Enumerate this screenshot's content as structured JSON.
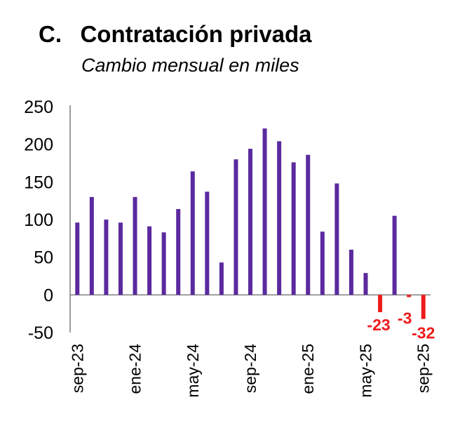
{
  "heading": {
    "letter": "C.",
    "title": "Contratación privada",
    "subtitle": "Cambio mensual en miles"
  },
  "colors": {
    "bar_positive": "#5b2a9e",
    "bar_negative": "#ee1c1c",
    "axis": "#7f7f7f"
  },
  "chart_data": {
    "type": "bar",
    "categories": [
      "sep-23",
      "oct-23",
      "nov-23",
      "dic-23",
      "ene-24",
      "feb-24",
      "mar-24",
      "abr-24",
      "may-24",
      "jun-24",
      "jul-24",
      "ago-24",
      "sep-24",
      "oct-24",
      "nov-24",
      "dic-24",
      "ene-25",
      "feb-25",
      "mar-25",
      "abr-25",
      "may-25",
      "jun-25",
      "jul-25",
      "ago-25",
      "sep-25"
    ],
    "values": [
      96,
      130,
      100,
      96,
      130,
      91,
      83,
      114,
      164,
      137,
      43,
      180,
      194,
      221,
      204,
      176,
      186,
      84,
      148,
      60,
      29,
      -23,
      105,
      -3,
      -32
    ],
    "x_tick_labels": [
      "sep-23",
      "ene-24",
      "may-24",
      "sep-24",
      "ene-25",
      "may-25",
      "sep-25"
    ],
    "y_ticks": [
      250,
      200,
      150,
      100,
      50,
      0,
      -50
    ],
    "ylim": [
      -50,
      250
    ],
    "data_labels": [
      {
        "category": "jun-25",
        "text": "-23"
      },
      {
        "category": "ago-25",
        "text": "-3"
      },
      {
        "category": "sep-25",
        "text": "-32"
      }
    ],
    "grid": false,
    "legend": "none"
  }
}
